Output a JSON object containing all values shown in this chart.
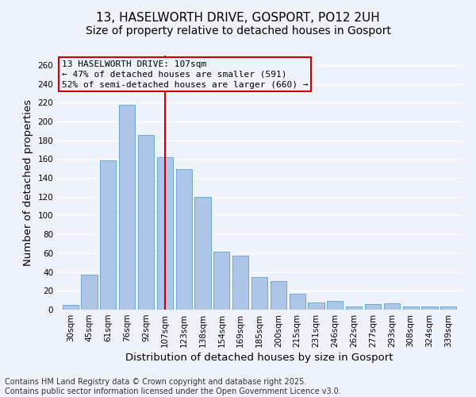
{
  "title": "13, HASELWORTH DRIVE, GOSPORT, PO12 2UH",
  "subtitle": "Size of property relative to detached houses in Gosport",
  "xlabel": "Distribution of detached houses by size in Gosport",
  "ylabel": "Number of detached properties",
  "categories": [
    "30sqm",
    "45sqm",
    "61sqm",
    "76sqm",
    "92sqm",
    "107sqm",
    "123sqm",
    "138sqm",
    "154sqm",
    "169sqm",
    "185sqm",
    "200sqm",
    "215sqm",
    "231sqm",
    "246sqm",
    "262sqm",
    "277sqm",
    "293sqm",
    "308sqm",
    "324sqm",
    "339sqm"
  ],
  "values": [
    5,
    37,
    159,
    218,
    186,
    162,
    149,
    120,
    62,
    57,
    35,
    30,
    17,
    8,
    9,
    3,
    6,
    7,
    3,
    3,
    3
  ],
  "bar_color": "#adc6e8",
  "bar_edgecolor": "#6aaad4",
  "marker_index": 5,
  "marker_color": "#cc0000",
  "annotation_title": "13 HASELWORTH DRIVE: 107sqm",
  "annotation_line1": "← 47% of detached houses are smaller (591)",
  "annotation_line2": "52% of semi-detached houses are larger (660) →",
  "annotation_box_edgecolor": "#cc0000",
  "ylim": [
    0,
    270
  ],
  "yticks": [
    0,
    20,
    40,
    60,
    80,
    100,
    120,
    140,
    160,
    180,
    200,
    220,
    240,
    260
  ],
  "footer_line1": "Contains HM Land Registry data © Crown copyright and database right 2025.",
  "footer_line2": "Contains public sector information licensed under the Open Government Licence v3.0.",
  "background_color": "#eef2fb",
  "grid_color": "#ffffff",
  "title_fontsize": 11,
  "subtitle_fontsize": 10,
  "axis_label_fontsize": 9.5,
  "tick_fontsize": 7.5,
  "footer_fontsize": 7,
  "annotation_fontsize": 8
}
